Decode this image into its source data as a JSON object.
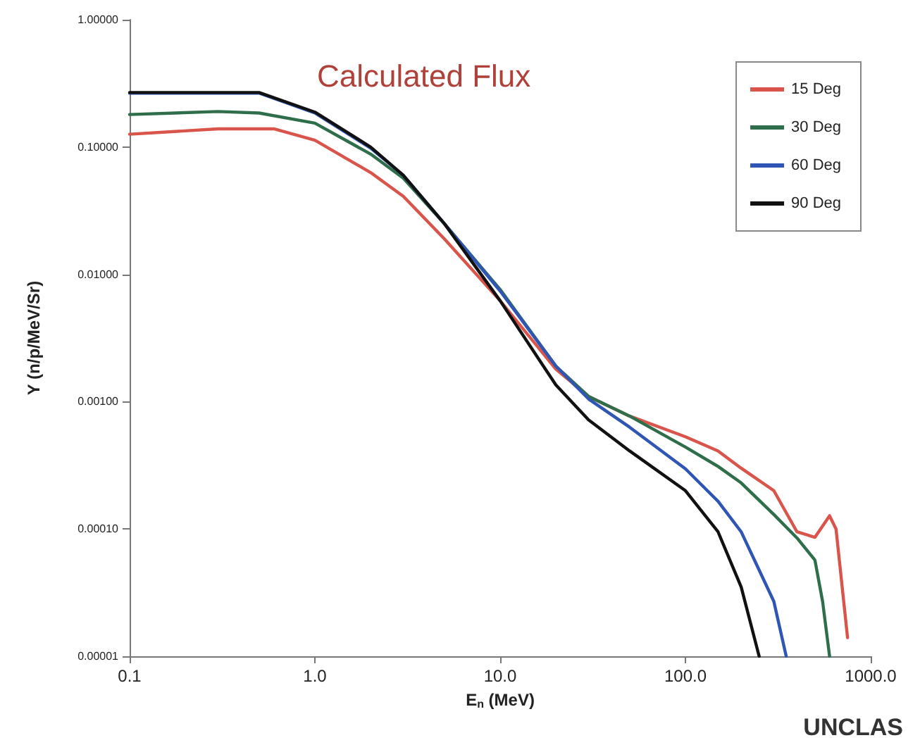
{
  "chart_data": {
    "type": "line",
    "title": "Calculated Flux",
    "xlabel": "E$_{n}$ (MeV)",
    "ylabel": "Y (n/p/MeV/Sr)",
    "annotations": [
      "UNCLAS"
    ],
    "log": "xy",
    "grid": false,
    "legend": "top right",
    "marker": "none",
    "line_style": "solid",
    "xlim": [
      0.1,
      1000
    ],
    "ylim": [
      1e-05,
      1
    ],
    "xticks": [
      {
        "value": 0.1,
        "label": "0.1"
      },
      {
        "value": 1,
        "label": "1.0"
      },
      {
        "value": 10,
        "label": "10.0"
      },
      {
        "value": 100,
        "label": "100.0"
      },
      {
        "value": 1000,
        "label": "1000.0"
      }
    ],
    "yticks": [
      {
        "value": 1e-05,
        "label": "0.00001"
      },
      {
        "value": 0.0001,
        "label": "0.00010"
      },
      {
        "value": 0.001,
        "label": "0.00100"
      },
      {
        "value": 0.01,
        "label": "0.01000"
      },
      {
        "value": 0.1,
        "label": "0.10000"
      },
      {
        "value": 1,
        "label": "1.00000"
      }
    ],
    "series": [
      {
        "name": "15 Deg",
        "color": "#d9544a",
        "x": [
          0.1,
          0.3,
          0.6,
          1,
          2,
          3,
          5,
          10,
          20,
          30,
          50,
          100,
          150,
          200,
          300,
          400,
          500,
          600,
          650,
          750
        ],
        "values": [
          0.126,
          0.139,
          0.139,
          0.113,
          0.063,
          0.041,
          0.019,
          0.0062,
          0.0018,
          0.0011,
          0.00077,
          0.00053,
          0.00041,
          0.0003,
          0.0002,
          9.5e-05,
          8.6e-05,
          0.000127,
          0.0001,
          1.4e-05
        ]
      },
      {
        "name": "30 Deg",
        "color": "#2f6e4a",
        "x": [
          0.1,
          0.3,
          0.5,
          1,
          2,
          3,
          5,
          10,
          20,
          30,
          50,
          100,
          150,
          200,
          300,
          400,
          500,
          550,
          600
        ],
        "values": [
          0.18,
          0.19,
          0.185,
          0.154,
          0.088,
          0.057,
          0.025,
          0.0076,
          0.0019,
          0.0011,
          0.00077,
          0.00044,
          0.00031,
          0.00023,
          0.00013,
          8.5e-05,
          5.7e-05,
          2.7e-05,
          1e-05
        ]
      },
      {
        "name": "60 Deg",
        "color": "#2f55b5",
        "x": [
          0.1,
          0.5,
          1,
          2,
          3,
          5,
          10,
          20,
          30,
          50,
          100,
          150,
          200,
          300,
          350
        ],
        "values": [
          0.265,
          0.265,
          0.185,
          0.098,
          0.06,
          0.025,
          0.0074,
          0.0019,
          0.00105,
          0.00063,
          0.000297,
          0.000165,
          9.5e-05,
          2.7e-05,
          1e-05
        ]
      },
      {
        "name": "90 Deg",
        "color": "#111111",
        "x": [
          0.1,
          0.5,
          1,
          2,
          3,
          5,
          10,
          20,
          30,
          50,
          100,
          150,
          200,
          250
        ],
        "values": [
          0.268,
          0.268,
          0.188,
          0.1,
          0.06,
          0.025,
          0.0062,
          0.00135,
          0.00072,
          0.00041,
          0.0002,
          9.5e-05,
          3.5e-05,
          1e-05
        ]
      }
    ]
  }
}
